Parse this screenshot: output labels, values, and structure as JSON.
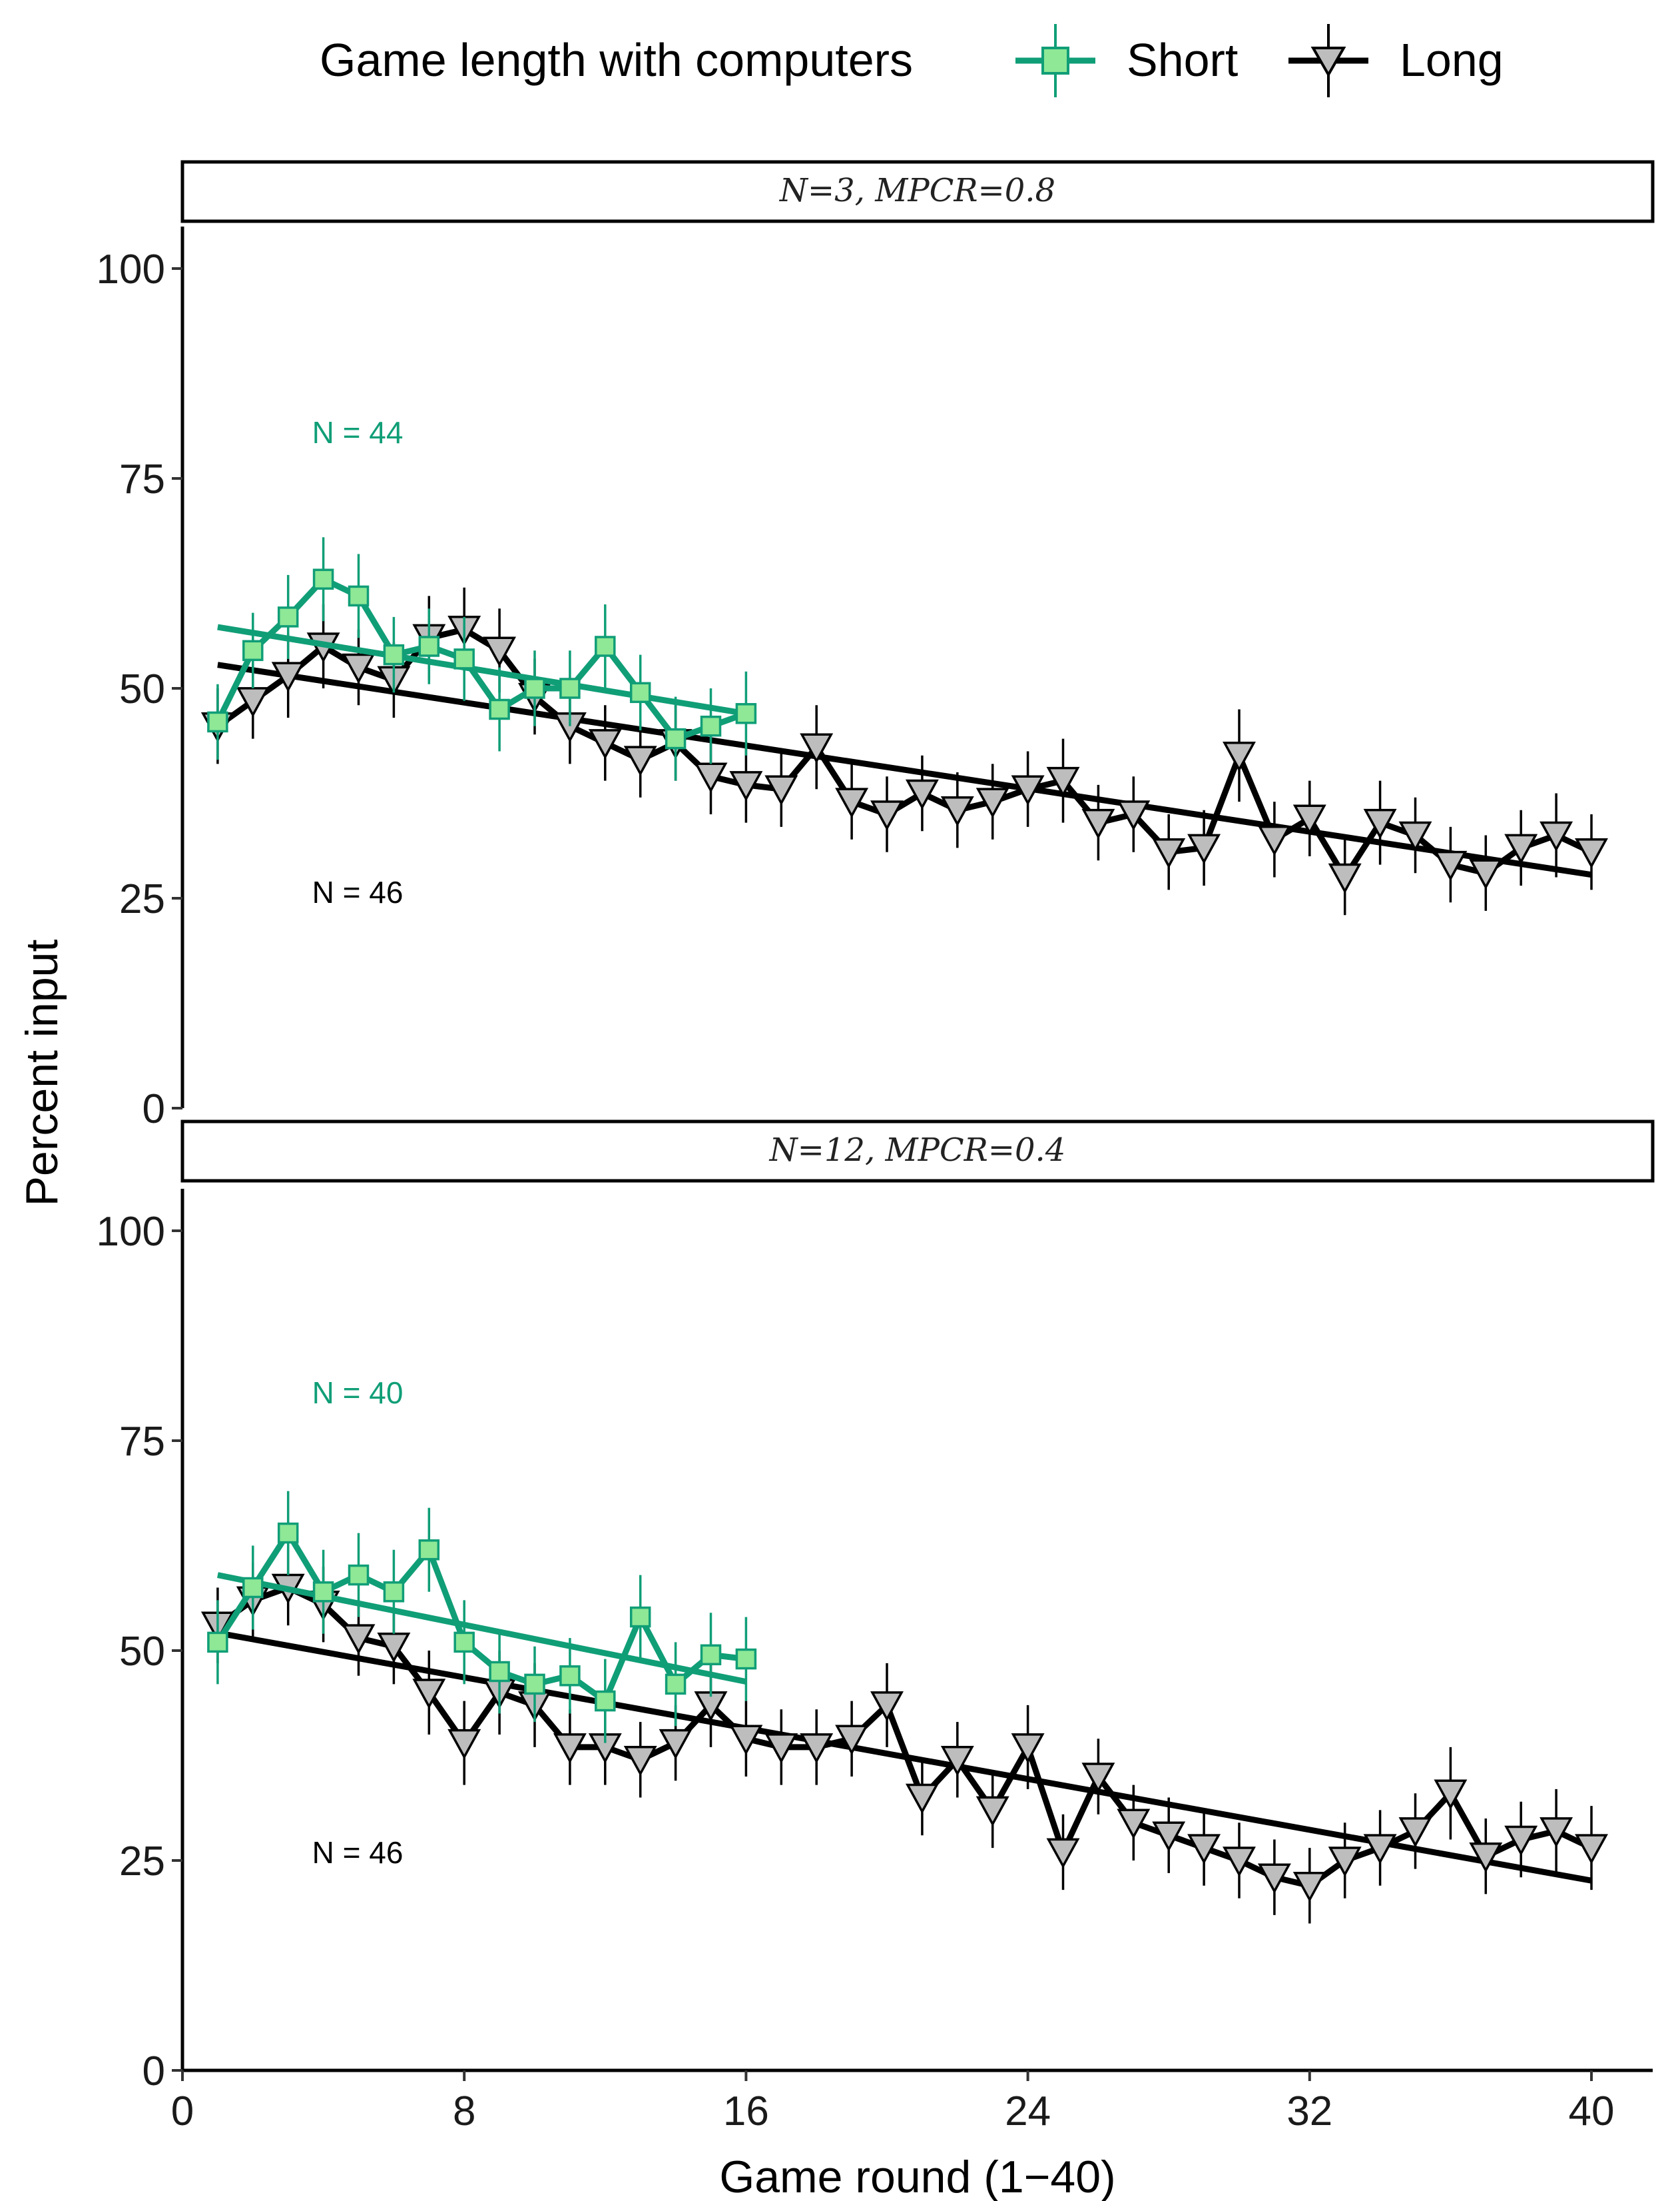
{
  "colors": {
    "short": "#109e77",
    "short_fill": "#8ee896",
    "long": "#000000",
    "long_fill": "#bdbdbd"
  },
  "chart_data": {
    "type": "line",
    "legend": {
      "title": "Game length with computers",
      "position": "top",
      "entries": [
        "Short",
        "Long"
      ]
    },
    "xlabel": "Game round (1−40)",
    "ylabel": "Percent input",
    "xlim": [
      0,
      42
    ],
    "ylim": [
      0,
      105
    ],
    "xticks": [
      0,
      8,
      16,
      24,
      32,
      40
    ],
    "yticks": [
      0,
      25,
      50,
      75,
      100
    ],
    "panels": [
      {
        "title": "N=3, MPCR=0.8",
        "annotations": [
          {
            "text": "N = 44",
            "series": "Short",
            "x": 5,
            "y": 80
          },
          {
            "text": "N = 46",
            "series": "Long",
            "x": 5,
            "y": 25
          }
        ],
        "series": [
          {
            "name": "Short",
            "x": [
              1,
              2,
              3,
              4,
              5,
              6,
              7,
              8,
              9,
              10,
              11,
              12,
              13,
              14,
              15,
              16
            ],
            "y": [
              46,
              54.5,
              58.5,
              63,
              61,
              54,
              55,
              53.5,
              47.5,
              50,
              50,
              55,
              49.5,
              44,
              45.5,
              47
            ],
            "err": [
              4.5,
              4.5,
              5,
              5,
              5,
              4.5,
              4.5,
              5,
              5,
              4.5,
              4.5,
              5,
              4.5,
              5,
              4.5,
              5
            ],
            "trend": [
              57.3,
              47.0
            ]
          },
          {
            "name": "Long",
            "x": [
              1,
              2,
              3,
              4,
              5,
              6,
              7,
              8,
              9,
              10,
              11,
              12,
              13,
              14,
              15,
              16,
              17,
              18,
              19,
              20,
              21,
              22,
              23,
              24,
              25,
              26,
              27,
              28,
              29,
              30,
              31,
              32,
              33,
              34,
              35,
              36,
              37,
              38,
              39,
              40
            ],
            "y": [
              45.5,
              48.5,
              51.5,
              55,
              52.5,
              51,
              56,
              57,
              54.5,
              49,
              45.5,
              43.5,
              41.5,
              43.5,
              39.5,
              38.5,
              38,
              43,
              36.5,
              35,
              37.5,
              35.5,
              36.5,
              38,
              39,
              34,
              35,
              30.5,
              31,
              42,
              32,
              34.5,
              27.5,
              34,
              32.5,
              29,
              28,
              31,
              32.5,
              30.5
            ],
            "err": [
              4.5,
              4.5,
              5,
              5,
              4.5,
              4.5,
              5,
              5,
              5,
              4.5,
              4.5,
              4.5,
              4.5,
              4.5,
              4.5,
              4.5,
              4.5,
              5,
              4.5,
              4.5,
              4.5,
              4.5,
              4.5,
              4.5,
              5,
              4.5,
              4.5,
              4.5,
              4.5,
              5.5,
              4.5,
              4.5,
              4.5,
              5,
              4.5,
              4.5,
              4.5,
              4.5,
              5,
              4.5
            ],
            "trend": [
              52.8,
              27.8
            ]
          }
        ]
      },
      {
        "title": "N=12, MPCR=0.4",
        "annotations": [
          {
            "text": "N = 40",
            "series": "Short",
            "x": 5,
            "y": 80
          },
          {
            "text": "N = 46",
            "series": "Long",
            "x": 5,
            "y": 25
          }
        ],
        "series": [
          {
            "name": "Short",
            "x": [
              1,
              2,
              3,
              4,
              5,
              6,
              7,
              8,
              9,
              10,
              11,
              12,
              13,
              14,
              15,
              16
            ],
            "y": [
              51,
              57.5,
              64,
              57,
              59,
              57,
              62,
              51,
              47.5,
              46,
              47,
              44,
              54,
              46,
              49.5,
              49
            ],
            "err": [
              5,
              5,
              5,
              5,
              5,
              5,
              5,
              5,
              5,
              4.5,
              4.5,
              5,
              5,
              5,
              5,
              5
            ],
            "trend": [
              59.0,
              46.3
            ]
          },
          {
            "name": "Long",
            "x": [
              1,
              2,
              3,
              4,
              5,
              6,
              7,
              8,
              9,
              10,
              11,
              12,
              13,
              14,
              15,
              16,
              17,
              18,
              19,
              20,
              21,
              22,
              23,
              24,
              25,
              26,
              27,
              28,
              29,
              30,
              31,
              32,
              33,
              34,
              35,
              36,
              37,
              38,
              39,
              40
            ],
            "y": [
              53,
              56,
              57.5,
              55.5,
              51.5,
              50.5,
              45,
              39,
              45,
              43.5,
              38.5,
              38.5,
              37,
              39,
              43.5,
              39.5,
              38.5,
              38.5,
              39.5,
              43.5,
              32.5,
              37,
              31,
              38.5,
              26,
              35,
              29.5,
              28,
              26.5,
              25,
              23,
              22,
              25,
              26.5,
              28.5,
              33,
              25.5,
              27.5,
              28.5,
              26.5
            ],
            "err": [
              4.5,
              4.5,
              4.5,
              4.5,
              4.5,
              4.5,
              5,
              5,
              5,
              5,
              4.5,
              4.5,
              4.5,
              4.5,
              5,
              4.5,
              4.5,
              4.5,
              4.5,
              5,
              4.5,
              4.5,
              4.5,
              5,
              4.5,
              4.5,
              4.5,
              4.5,
              4.5,
              4.5,
              4.5,
              4.5,
              4.5,
              4.5,
              4.5,
              5.5,
              4.5,
              4.5,
              5,
              5
            ],
            "trend": [
              52.1,
              22.6
            ]
          }
        ]
      }
    ]
  }
}
